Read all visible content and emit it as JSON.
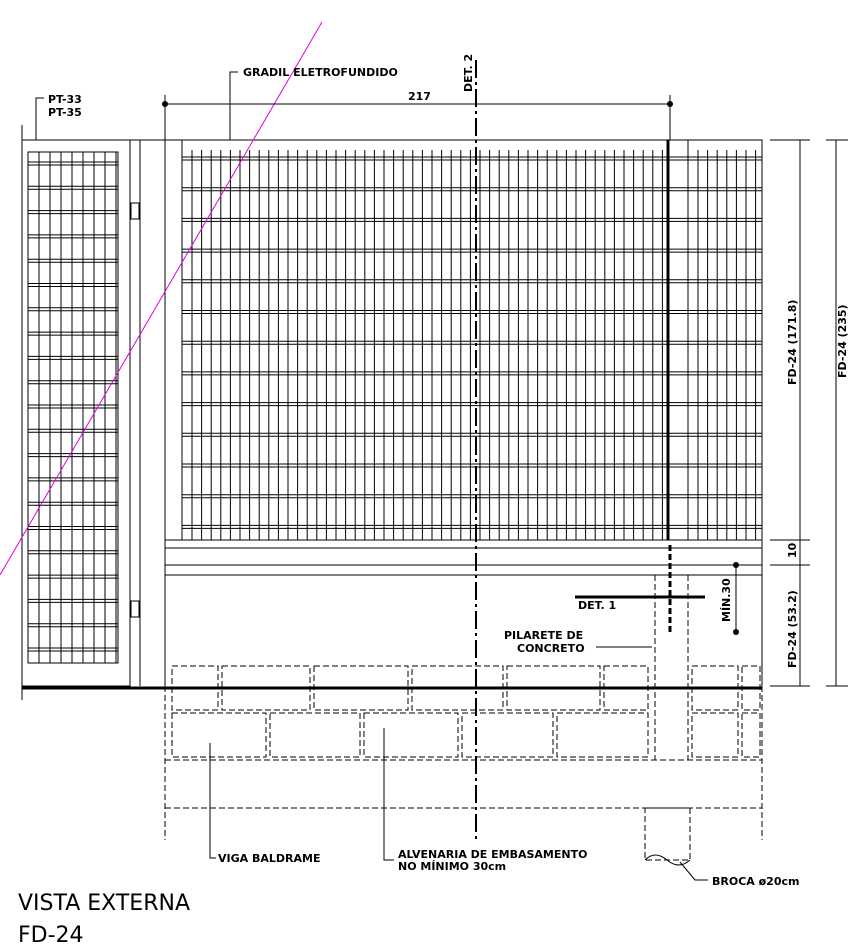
{
  "labels": {
    "gradil": "GRADIL ELETROFUNDIDO",
    "det2": "DET. 2",
    "width": "217",
    "pt33": "PT-33",
    "pt35": "PT-35",
    "fd_panel": "FD-24 (171.8)",
    "fd_total": "FD-24 (235)",
    "beam": "10",
    "fd_base": "FD-24 (53.2)",
    "min30": "MÍN.30",
    "det1": "DET. 1",
    "pilarete_1": "PILARETE DE",
    "pilarete_2": "CONCRETO",
    "alvenaria_1": "ALVENARIA DE EMBASAMENTO",
    "alvenaria_2": "NO MÍNIMO 30cm",
    "viga": "VIGA BALDRAME",
    "broca": "BROCA ø20cm",
    "view_title": "VISTA EXTERNA",
    "view_code": "FD-24"
  }
}
